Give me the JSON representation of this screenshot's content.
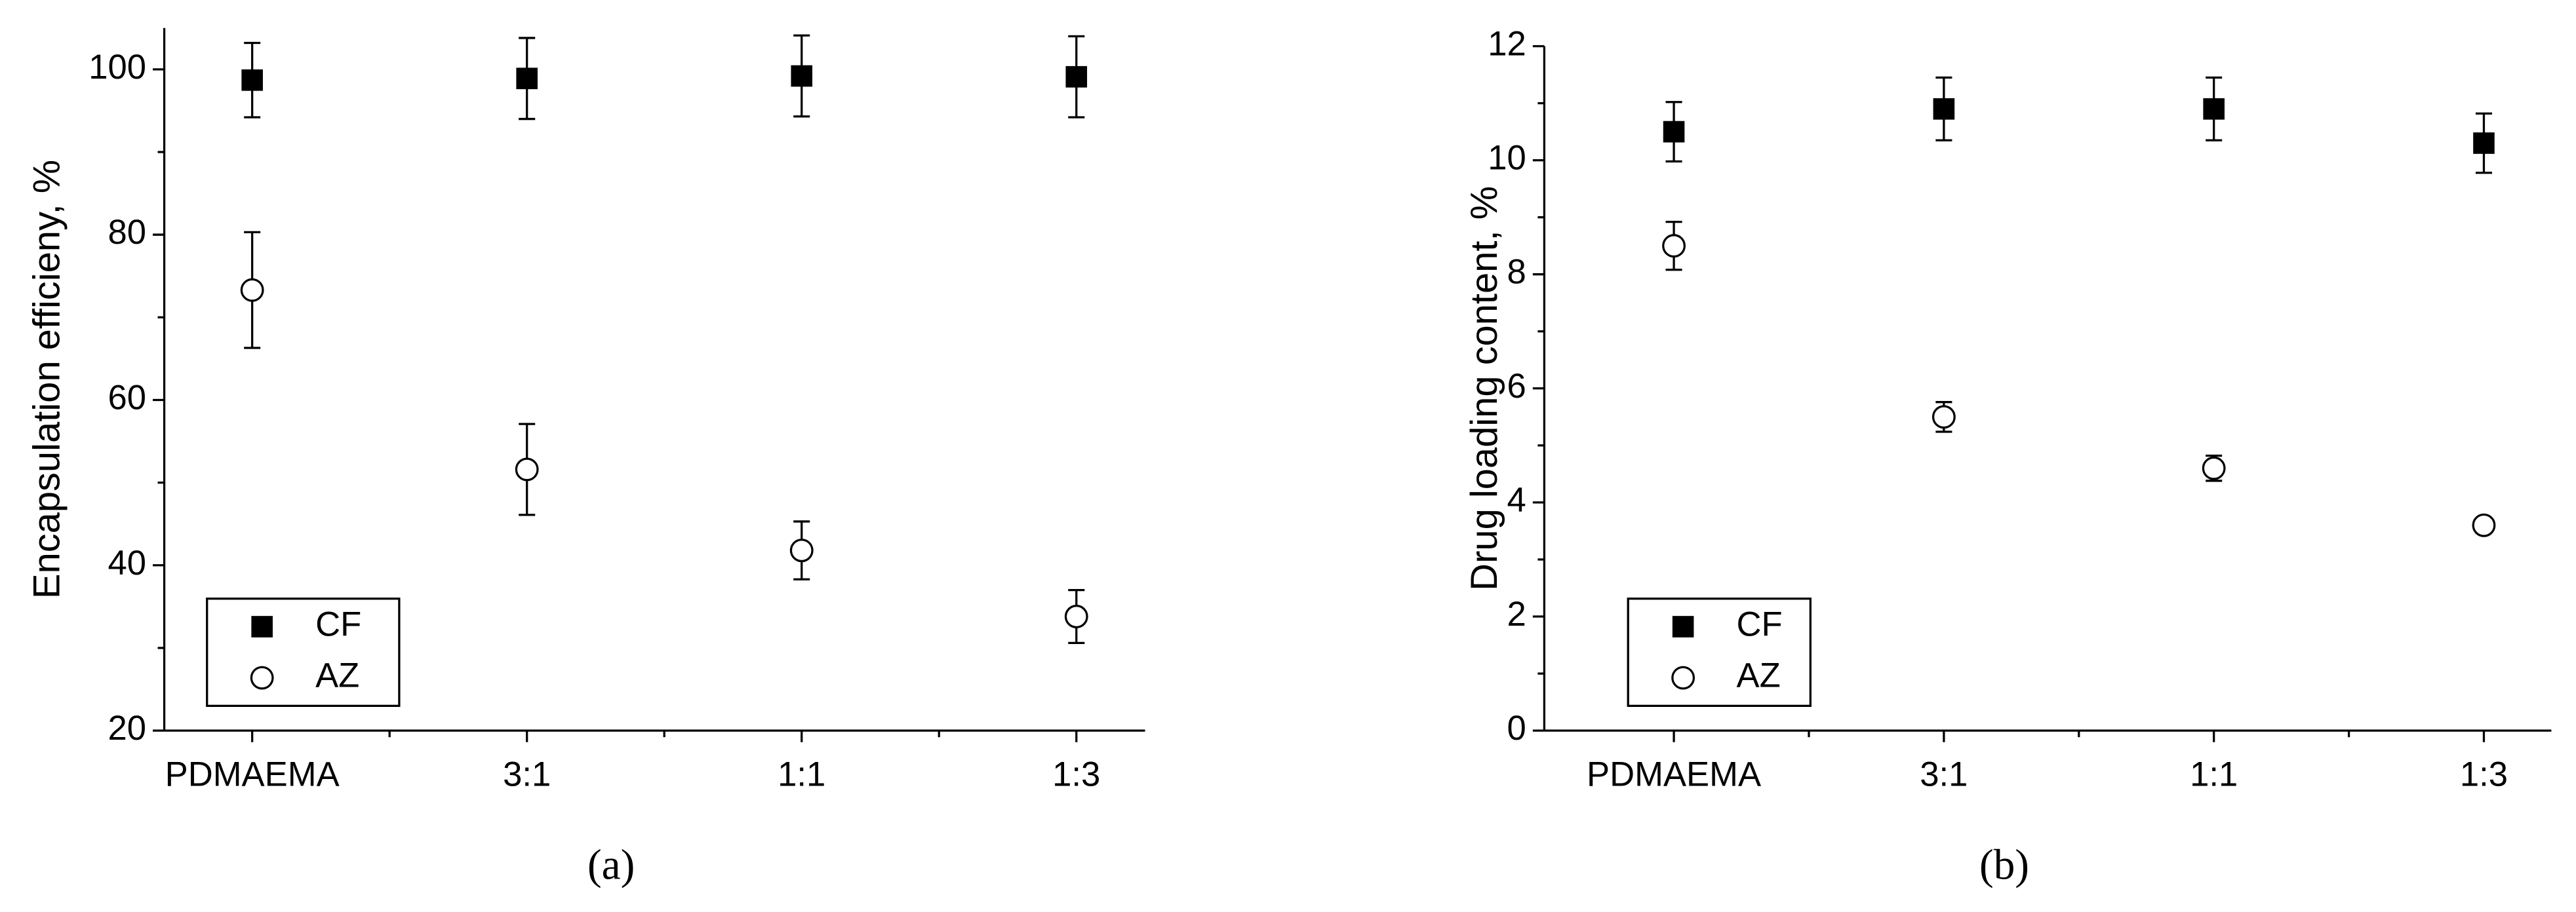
{
  "chart_data": [
    {
      "type": "scatter",
      "caption": "(a)",
      "y_label": "Encapsulation efficieny, %",
      "categories": [
        "PDMAEMA",
        "3:1",
        "1:1",
        "1:3"
      ],
      "ylim": [
        20,
        105
      ],
      "yticks": [
        20,
        40,
        60,
        80,
        100
      ],
      "legend": "lower-left",
      "series": [
        {
          "name": "CF",
          "marker": "square",
          "color": "#000000",
          "values": [
            98.7,
            98.9,
            99.2,
            99.1
          ],
          "errors": [
            4.5,
            4.9,
            4.9,
            4.9
          ]
        },
        {
          "name": "AZ",
          "marker": "circle",
          "color": "#000000",
          "values": [
            73.3,
            51.6,
            41.8,
            33.8
          ],
          "errors": [
            7.0,
            5.5,
            3.5,
            3.2
          ]
        }
      ]
    },
    {
      "type": "scatter",
      "caption": "(b)",
      "y_label": "Drug loading content, %",
      "categories": [
        "PDMAEMA",
        "3:1",
        "1:1",
        "1:3"
      ],
      "ylim": [
        0,
        12
      ],
      "yticks": [
        0,
        2,
        4,
        6,
        8,
        10,
        12
      ],
      "legend": "lower-left",
      "series": [
        {
          "name": "CF",
          "marker": "square",
          "color": "#000000",
          "values": [
            10.5,
            10.9,
            10.9,
            10.3
          ],
          "errors": [
            0.52,
            0.55,
            0.55,
            0.52
          ]
        },
        {
          "name": "AZ",
          "marker": "circle",
          "color": "#000000",
          "values": [
            8.5,
            5.5,
            4.6,
            3.6
          ],
          "errors": [
            0.42,
            0.26,
            0.22,
            0.12
          ]
        }
      ]
    }
  ]
}
